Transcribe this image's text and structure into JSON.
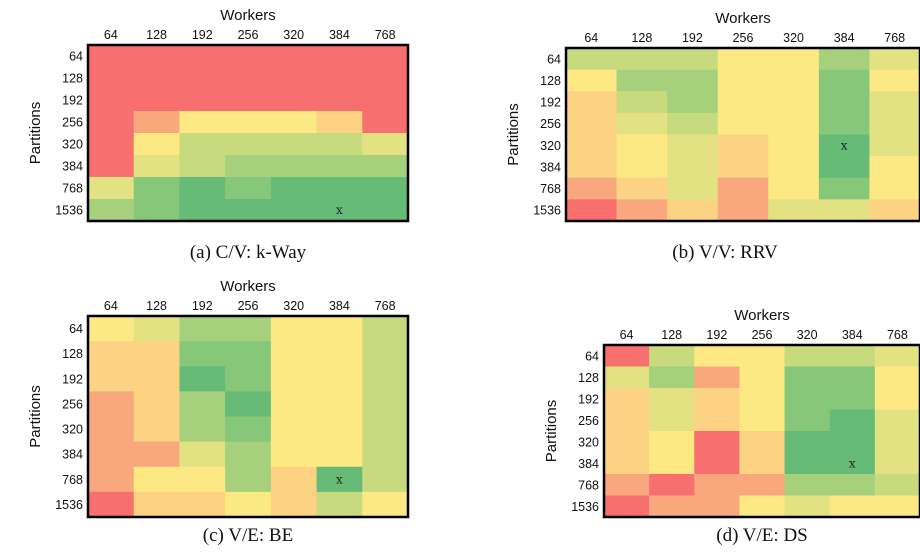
{
  "colors": {
    "scale": [
      "#f86f6f",
      "#f9a87d",
      "#fcd383",
      "#fce984",
      "#e3e282",
      "#c8da7e",
      "#a6d07c",
      "#87c77a",
      "#66bc76"
    ]
  },
  "chart_data": [
    {
      "type": "heatmap",
      "xlabel": "Workers",
      "ylabel": "Partitions",
      "caption": "(a) C/V: k-Way",
      "x_categories": [
        "64",
        "128",
        "192",
        "256",
        "320",
        "384",
        "768"
      ],
      "y_categories": [
        "64",
        "128",
        "192",
        "256",
        "320",
        "384",
        "768",
        "1536"
      ],
      "color_levels": [
        [
          0,
          0,
          0,
          0,
          0,
          0,
          0
        ],
        [
          0,
          0,
          0,
          0,
          0,
          0,
          0
        ],
        [
          0,
          0,
          0,
          0,
          0,
          0,
          0
        ],
        [
          0,
          1,
          3,
          3,
          3,
          2,
          0
        ],
        [
          0,
          3,
          5,
          5,
          5,
          5,
          4
        ],
        [
          0,
          4,
          5,
          6,
          6,
          6,
          6
        ],
        [
          4,
          7,
          8,
          7,
          8,
          8,
          8
        ],
        [
          6,
          7,
          8,
          8,
          8,
          8,
          8
        ]
      ],
      "marker": {
        "row": 7,
        "col": 5,
        "text": "x"
      }
    },
    {
      "type": "heatmap",
      "xlabel": "Workers",
      "ylabel": "Partitions",
      "caption": "(b) V/V: RRV",
      "x_categories": [
        "64",
        "128",
        "192",
        "256",
        "320",
        "384",
        "768"
      ],
      "y_categories": [
        "64",
        "128",
        "192",
        "256",
        "320",
        "384",
        "768",
        "1536"
      ],
      "color_levels": [
        [
          5,
          5,
          5,
          3,
          3,
          6,
          4
        ],
        [
          3,
          6,
          6,
          3,
          3,
          7,
          3
        ],
        [
          2,
          5,
          6,
          3,
          3,
          7,
          4
        ],
        [
          2,
          4,
          5,
          3,
          3,
          7,
          4
        ],
        [
          2,
          3,
          4,
          2,
          3,
          8,
          4
        ],
        [
          2,
          3,
          4,
          2,
          3,
          8,
          3
        ],
        [
          1,
          2,
          4,
          1,
          3,
          7,
          3
        ],
        [
          0,
          1,
          2,
          1,
          4,
          4,
          2
        ]
      ],
      "marker": {
        "row": 4,
        "col": 5,
        "text": "x"
      }
    },
    {
      "type": "heatmap",
      "xlabel": "Workers",
      "ylabel": "Partitions",
      "caption": "(c) V/E: BE",
      "x_categories": [
        "64",
        "128",
        "192",
        "256",
        "320",
        "384",
        "768"
      ],
      "y_categories": [
        "64",
        "128",
        "192",
        "256",
        "320",
        "384",
        "768",
        "1536"
      ],
      "color_levels": [
        [
          3,
          4,
          6,
          6,
          3,
          3,
          5
        ],
        [
          2,
          2,
          7,
          7,
          3,
          3,
          5
        ],
        [
          2,
          2,
          8,
          7,
          3,
          3,
          5
        ],
        [
          1,
          2,
          6,
          8,
          3,
          3,
          5
        ],
        [
          1,
          2,
          6,
          7,
          3,
          3,
          5
        ],
        [
          1,
          1,
          4,
          6,
          3,
          3,
          5
        ],
        [
          1,
          3,
          3,
          6,
          2,
          8,
          5
        ],
        [
          0,
          2,
          2,
          3,
          2,
          5,
          3
        ]
      ],
      "marker": {
        "row": 6,
        "col": 5,
        "text": "x"
      }
    },
    {
      "type": "heatmap",
      "xlabel": "Workers",
      "ylabel": "Partitions",
      "caption": "(d) V/E: DS",
      "x_categories": [
        "64",
        "128",
        "192",
        "256",
        "320",
        "384",
        "768"
      ],
      "y_categories": [
        "64",
        "128",
        "192",
        "256",
        "320",
        "384",
        "768",
        "1536"
      ],
      "color_levels": [
        [
          0,
          5,
          3,
          3,
          5,
          5,
          4
        ],
        [
          4,
          6,
          1,
          3,
          7,
          7,
          3
        ],
        [
          2,
          4,
          2,
          3,
          7,
          7,
          3
        ],
        [
          2,
          4,
          2,
          3,
          7,
          8,
          4
        ],
        [
          2,
          3,
          0,
          2,
          8,
          8,
          4
        ],
        [
          2,
          3,
          0,
          2,
          8,
          8,
          4
        ],
        [
          1,
          0,
          1,
          1,
          6,
          6,
          5
        ],
        [
          0,
          1,
          1,
          3,
          4,
          3,
          3
        ]
      ],
      "marker": {
        "row": 5,
        "col": 5,
        "text": "x"
      }
    }
  ]
}
